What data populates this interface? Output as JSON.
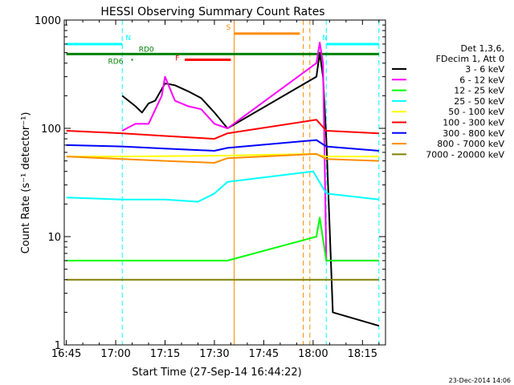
{
  "chart_data": {
    "type": "line",
    "title": "HESSI Observing Summary Count Rates",
    "xlabel": "Start Time (27-Sep-14 16:44:22)",
    "ylabel": "Count Rate (s⁻¹ detector⁻¹)",
    "y_scale": "log",
    "ylim": [
      1,
      1000
    ],
    "xlim": [
      "16:44:22",
      "18:22:00"
    ],
    "x_ticks": [
      "16:45",
      "17:00",
      "17:15",
      "17:30",
      "17:45",
      "18:00",
      "18:15"
    ],
    "y_ticks": [
      "1",
      "10",
      "100",
      "1000"
    ],
    "detector_info": [
      "Det 1,3,6,",
      "FDecim 1, Att 0"
    ],
    "series": [
      {
        "name": "3 - 6 keV",
        "color": "#000000",
        "points": [
          [
            "17:02",
            200
          ],
          [
            "17:06",
            160
          ],
          [
            "17:08",
            140
          ],
          [
            "17:10",
            170
          ],
          [
            "17:12",
            180
          ],
          [
            "17:15",
            260
          ],
          [
            "17:18",
            250
          ],
          [
            "17:22",
            220
          ],
          [
            "17:26",
            190
          ],
          [
            "17:30",
            140
          ],
          [
            "17:34",
            100
          ],
          [
            "18:01",
            300
          ],
          [
            "18:02",
            500
          ],
          [
            "18:03",
            300
          ],
          [
            "18:04",
            80
          ],
          [
            "18:06",
            2
          ],
          [
            "18:20",
            1.5
          ]
        ]
      },
      {
        "name": "6 - 12 keV",
        "color": "#ff00ff",
        "points": [
          [
            "17:02",
            95
          ],
          [
            "17:06",
            110
          ],
          [
            "17:10",
            110
          ],
          [
            "17:14",
            200
          ],
          [
            "17:15",
            300
          ],
          [
            "17:18",
            180
          ],
          [
            "17:22",
            160
          ],
          [
            "17:26",
            150
          ],
          [
            "17:30",
            110
          ],
          [
            "17:34",
            100
          ],
          [
            "18:01",
            400
          ],
          [
            "18:02",
            620
          ],
          [
            "18:03",
            400
          ],
          [
            "18:04",
            6
          ],
          [
            "18:20",
            6
          ]
        ]
      },
      {
        "name": "12 - 25 keV",
        "color": "#00ff00",
        "points": [
          [
            "16:45",
            6
          ],
          [
            "17:02",
            6
          ],
          [
            "17:10",
            6
          ],
          [
            "17:30",
            6
          ],
          [
            "17:34",
            6
          ],
          [
            "18:01",
            10
          ],
          [
            "18:02",
            15
          ],
          [
            "18:04",
            6
          ],
          [
            "18:20",
            6
          ]
        ]
      },
      {
        "name": "25 - 50 keV",
        "color": "#00ffff",
        "points": [
          [
            "16:45",
            23
          ],
          [
            "17:02",
            22
          ],
          [
            "17:15",
            22
          ],
          [
            "17:25",
            21
          ],
          [
            "17:30",
            25
          ],
          [
            "17:34",
            32
          ],
          [
            "18:00",
            40
          ],
          [
            "18:04",
            25
          ],
          [
            "18:20",
            22
          ]
        ]
      },
      {
        "name": "50 - 100 keV",
        "color": "#ffff00",
        "points": [
          [
            "16:45",
            55
          ],
          [
            "17:02",
            55
          ],
          [
            "17:34",
            56
          ],
          [
            "18:00",
            58
          ],
          [
            "18:04",
            55
          ],
          [
            "18:20",
            55
          ]
        ]
      },
      {
        "name": "100 - 300 keV",
        "color": "#ff0000",
        "points": [
          [
            "16:45",
            95
          ],
          [
            "17:02",
            90
          ],
          [
            "17:15",
            85
          ],
          [
            "17:30",
            80
          ],
          [
            "17:34",
            90
          ],
          [
            "18:01",
            120
          ],
          [
            "18:04",
            95
          ],
          [
            "18:20",
            90
          ]
        ]
      },
      {
        "name": "300 - 800 keV",
        "color": "#0000ff",
        "points": [
          [
            "16:45",
            70
          ],
          [
            "17:02",
            68
          ],
          [
            "17:15",
            65
          ],
          [
            "17:30",
            62
          ],
          [
            "17:34",
            66
          ],
          [
            "18:01",
            78
          ],
          [
            "18:04",
            68
          ],
          [
            "18:20",
            62
          ]
        ]
      },
      {
        "name": "800 - 7000 keV",
        "color": "#ff8c00",
        "points": [
          [
            "16:45",
            55
          ],
          [
            "17:02",
            52
          ],
          [
            "17:15",
            50
          ],
          [
            "17:30",
            48
          ],
          [
            "17:34",
            53
          ],
          [
            "18:01",
            58
          ],
          [
            "18:04",
            52
          ],
          [
            "18:20",
            50
          ]
        ]
      },
      {
        "name": "7000 - 20000 keV",
        "color": "#808000",
        "points": [
          [
            "16:45",
            4
          ],
          [
            "17:02",
            4
          ],
          [
            "17:34",
            4
          ],
          [
            "18:04",
            4
          ],
          [
            "18:20",
            4
          ]
        ]
      }
    ],
    "annotations": [
      {
        "label": "N",
        "color": "#00ffff",
        "x_start": "16:45",
        "x_end": "17:02",
        "y": 600
      },
      {
        "label": "N",
        "color": "#00ffff",
        "x_start": "18:04",
        "x_end": "18:20",
        "y": 600
      },
      {
        "label": "S",
        "color": "#ff8c00",
        "x_start": "17:36",
        "x_end": "17:56",
        "y": 750
      },
      {
        "label": "F",
        "color": "#ff0000",
        "x_start": "17:21",
        "x_end": "17:35",
        "y": 430
      },
      {
        "label": "RD0",
        "color": "#008000",
        "x_start": "16:45",
        "x_end": "18:20",
        "y": 485
      },
      {
        "label": "RD6",
        "color": "#008000",
        "x_start": "17:05",
        "x_end": "17:05",
        "y": 430
      }
    ],
    "vertical_markers": [
      {
        "x": "17:02",
        "color": "#00ffff",
        "style": "dashed"
      },
      {
        "x": "18:04",
        "color": "#00ffff",
        "style": "dashed"
      },
      {
        "x": "18:20",
        "color": "#00ffff",
        "style": "dashed"
      },
      {
        "x": "17:36",
        "color": "#ff8c00",
        "style": "solid"
      },
      {
        "x": "17:57",
        "color": "#ff8c00",
        "style": "dashed"
      },
      {
        "x": "17:59",
        "color": "#ff8c00",
        "style": "dashed"
      }
    ]
  },
  "footer": {
    "timestamp": "23-Dec-2014 14:06"
  }
}
